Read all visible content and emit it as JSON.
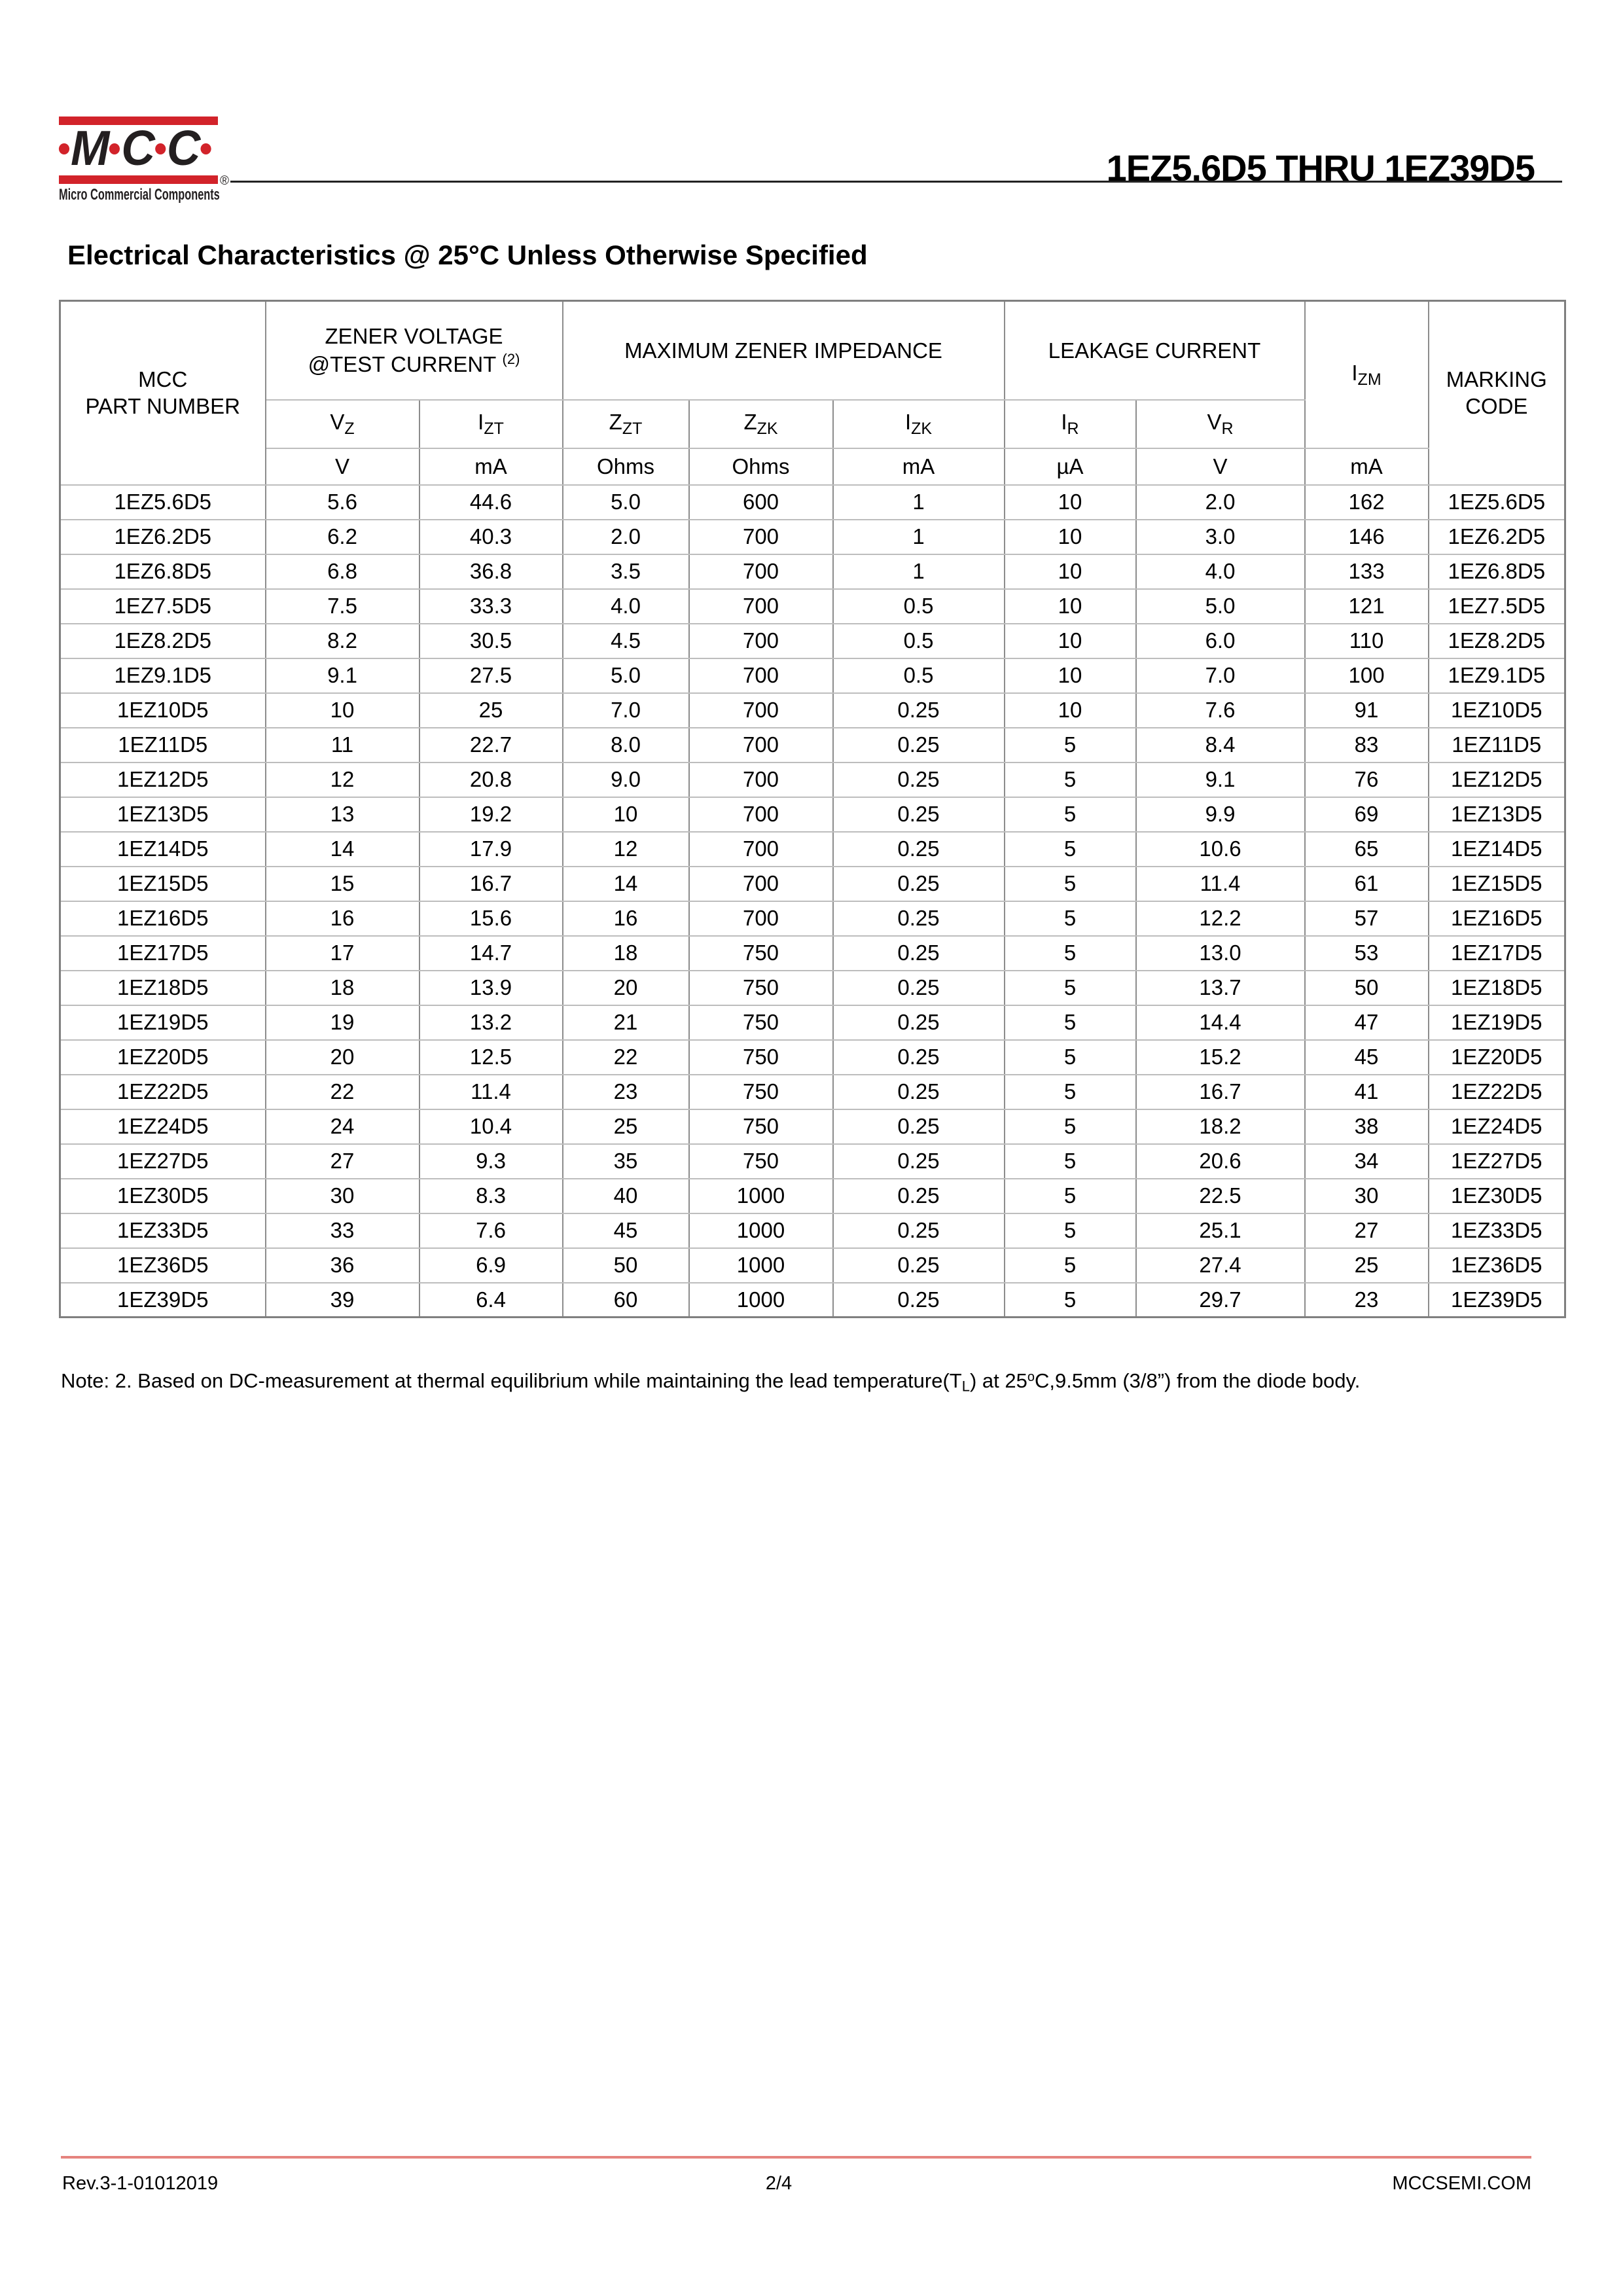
{
  "colors": {
    "brand_red": "#d2232a",
    "footer_rule": "#e5837e",
    "grid_vertical": "#8c8c8c",
    "grid_horizontal": "#bdbdbd",
    "grid_outer": "#7f7f7f"
  },
  "brand": {
    "letters": [
      {
        "dot": true
      },
      {
        "ch": "M"
      },
      {
        "dot": true
      },
      {
        "ch": "C"
      },
      {
        "dot": true
      },
      {
        "ch": "C"
      },
      {
        "dot": true
      }
    ],
    "registered": "®",
    "tagline": "Micro Commercial Components"
  },
  "header": {
    "title": "1EZ5.6D5 THRU 1EZ39D5"
  },
  "section": {
    "heading": "Electrical Characteristics @ 25°C Unless Otherwise Specified"
  },
  "table": {
    "groups": {
      "part": "MCC\nPART NUMBER",
      "zener_voltage_line1": "ZENER VOLTAGE",
      "zener_voltage_line2": "@TEST CURRENT",
      "zener_voltage_sup": "(2)",
      "impedance": "MAXIMUM ZENER IMPEDANCE",
      "leakage": "LEAKAGE CURRENT",
      "izm_base": "I",
      "izm_sub": "ZM",
      "marking": "MARKING\nCODE"
    },
    "symbols": [
      {
        "base": "V",
        "sub": "Z"
      },
      {
        "base": "I",
        "sub": "ZT"
      },
      {
        "base": "Z",
        "sub": "ZT"
      },
      {
        "base": "Z",
        "sub": "ZK"
      },
      {
        "base": "I",
        "sub": "ZK"
      },
      {
        "base": "I",
        "sub": "R"
      },
      {
        "base": "V",
        "sub": "R"
      }
    ],
    "units": [
      "V",
      "mA",
      "Ohms",
      "Ohms",
      "mA",
      "µA",
      "V",
      "mA"
    ],
    "rows": [
      [
        "1EZ5.6D5",
        "5.6",
        "44.6",
        "5.0",
        "600",
        "1",
        "10",
        "2.0",
        "162",
        "1EZ5.6D5"
      ],
      [
        "1EZ6.2D5",
        "6.2",
        "40.3",
        "2.0",
        "700",
        "1",
        "10",
        "3.0",
        "146",
        "1EZ6.2D5"
      ],
      [
        "1EZ6.8D5",
        "6.8",
        "36.8",
        "3.5",
        "700",
        "1",
        "10",
        "4.0",
        "133",
        "1EZ6.8D5"
      ],
      [
        "1EZ7.5D5",
        "7.5",
        "33.3",
        "4.0",
        "700",
        "0.5",
        "10",
        "5.0",
        "121",
        "1EZ7.5D5"
      ],
      [
        "1EZ8.2D5",
        "8.2",
        "30.5",
        "4.5",
        "700",
        "0.5",
        "10",
        "6.0",
        "110",
        "1EZ8.2D5"
      ],
      [
        "1EZ9.1D5",
        "9.1",
        "27.5",
        "5.0",
        "700",
        "0.5",
        "10",
        "7.0",
        "100",
        "1EZ9.1D5"
      ],
      [
        "1EZ10D5",
        "10",
        "25",
        "7.0",
        "700",
        "0.25",
        "10",
        "7.6",
        "91",
        "1EZ10D5"
      ],
      [
        "1EZ11D5",
        "11",
        "22.7",
        "8.0",
        "700",
        "0.25",
        "5",
        "8.4",
        "83",
        "1EZ11D5"
      ],
      [
        "1EZ12D5",
        "12",
        "20.8",
        "9.0",
        "700",
        "0.25",
        "5",
        "9.1",
        "76",
        "1EZ12D5"
      ],
      [
        "1EZ13D5",
        "13",
        "19.2",
        "10",
        "700",
        "0.25",
        "5",
        "9.9",
        "69",
        "1EZ13D5"
      ],
      [
        "1EZ14D5",
        "14",
        "17.9",
        "12",
        "700",
        "0.25",
        "5",
        "10.6",
        "65",
        "1EZ14D5"
      ],
      [
        "1EZ15D5",
        "15",
        "16.7",
        "14",
        "700",
        "0.25",
        "5",
        "11.4",
        "61",
        "1EZ15D5"
      ],
      [
        "1EZ16D5",
        "16",
        "15.6",
        "16",
        "700",
        "0.25",
        "5",
        "12.2",
        "57",
        "1EZ16D5"
      ],
      [
        "1EZ17D5",
        "17",
        "14.7",
        "18",
        "750",
        "0.25",
        "5",
        "13.0",
        "53",
        "1EZ17D5"
      ],
      [
        "1EZ18D5",
        "18",
        "13.9",
        "20",
        "750",
        "0.25",
        "5",
        "13.7",
        "50",
        "1EZ18D5"
      ],
      [
        "1EZ19D5",
        "19",
        "13.2",
        "21",
        "750",
        "0.25",
        "5",
        "14.4",
        "47",
        "1EZ19D5"
      ],
      [
        "1EZ20D5",
        "20",
        "12.5",
        "22",
        "750",
        "0.25",
        "5",
        "15.2",
        "45",
        "1EZ20D5"
      ],
      [
        "1EZ22D5",
        "22",
        "11.4",
        "23",
        "750",
        "0.25",
        "5",
        "16.7",
        "41",
        "1EZ22D5"
      ],
      [
        "1EZ24D5",
        "24",
        "10.4",
        "25",
        "750",
        "0.25",
        "5",
        "18.2",
        "38",
        "1EZ24D5"
      ],
      [
        "1EZ27D5",
        "27",
        "9.3",
        "35",
        "750",
        "0.25",
        "5",
        "20.6",
        "34",
        "1EZ27D5"
      ],
      [
        "1EZ30D5",
        "30",
        "8.3",
        "40",
        "1000",
        "0.25",
        "5",
        "22.5",
        "30",
        "1EZ30D5"
      ],
      [
        "1EZ33D5",
        "33",
        "7.6",
        "45",
        "1000",
        "0.25",
        "5",
        "25.1",
        "27",
        "1EZ33D5"
      ],
      [
        "1EZ36D5",
        "36",
        "6.9",
        "50",
        "1000",
        "0.25",
        "5",
        "27.4",
        "25",
        "1EZ36D5"
      ],
      [
        "1EZ39D5",
        "39",
        "6.4",
        "60",
        "1000",
        "0.25",
        "5",
        "29.7",
        "23",
        "1EZ39D5"
      ]
    ]
  },
  "note": {
    "part1": "Note: 2. Based on DC-measurement at thermal equilibrium while maintaining the lead temperature(T",
    "sub1": "L",
    "part2": ") at 25",
    "sup1": "o",
    "part3": "C,9.5mm (3/8”) from the diode body."
  },
  "footer": {
    "left": "Rev.3-1-01012019",
    "center": "2/4",
    "right": "MCCSEMI.COM"
  }
}
